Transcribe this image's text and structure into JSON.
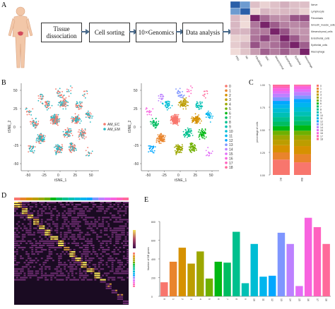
{
  "panels": {
    "A": "A",
    "B": "B",
    "C": "C",
    "D": "D",
    "E": "E"
  },
  "flow": {
    "steps": [
      "Tissue dissociation",
      "Cell sorting",
      "10×Genomics",
      "Data analysis"
    ]
  },
  "heatmap_A": {
    "row_labels": [
      "Nerve",
      "Lymphocyte",
      "Fibroblasts",
      "Smooth_muscle_cells",
      "Mesenchymal_cells",
      "Endothelial_cells",
      "Epithelial_cells",
      "Macrophage"
    ],
    "col_labels": [
      "PRD",
      "NK",
      "Fibroblasts",
      "SMC",
      "Mesenchymal",
      "Endothelial",
      "Epithelial",
      "Macrophage"
    ]
  },
  "tsne_left": {
    "xlabel": "tSNE_1",
    "ylabel": "tSNE_2",
    "xticks": [
      "-50",
      "-25",
      "0",
      "25",
      "50"
    ],
    "yticks": [
      "50",
      "25",
      "0",
      "-25",
      "-50"
    ],
    "legend": [
      {
        "label": "AM_EC",
        "color": "#f47b6e"
      },
      {
        "label": "AM_EM",
        "color": "#27b8c2"
      }
    ]
  },
  "tsne_right": {
    "xlabel": "tSNE_1",
    "ylabel": "tSNE_2",
    "xticks": [
      "-50",
      "-25",
      "0",
      "25",
      "50"
    ],
    "yticks": [
      "50",
      "25",
      "0",
      "-25",
      "-50"
    ],
    "legend": [
      "0",
      "1",
      "2",
      "3",
      "4",
      "5",
      "6",
      "7",
      "8",
      "9",
      "10",
      "11",
      "12",
      "13",
      "14",
      "15",
      "16",
      "17",
      "18"
    ]
  },
  "chart_data": [
    {
      "type": "bar",
      "panel": "C",
      "categories": [
        "EC",
        "EM"
      ],
      "ylabel": "percentage of cells",
      "yticks": [
        "1.00",
        "0.75",
        "0.50",
        "0.25",
        "0.00"
      ],
      "series_colors": [
        "#f8766d",
        "#e9842c",
        "#d69100",
        "#bc9d00",
        "#9ca700",
        "#6fb000",
        "#00b813",
        "#00bd61",
        "#00c08e",
        "#00c0b4",
        "#00bdd4",
        "#00b5ee",
        "#00a7ff",
        "#7f96ff",
        "#bc81ff",
        "#e26ef7",
        "#f863df",
        "#ff62bf",
        "#ff6a9a"
      ],
      "legend": [
        "0",
        "1",
        "2",
        "3",
        "4",
        "5",
        "6",
        "7",
        "8",
        "9",
        "10",
        "11",
        "12",
        "13",
        "14",
        "15",
        "16",
        "17",
        "18"
      ]
    },
    {
      "type": "bar",
      "panel": "E",
      "ylabel": "Number of DE genes",
      "yticks": [
        "800",
        "600",
        "400",
        "200",
        "0"
      ],
      "ylim": [
        0,
        800
      ],
      "categories": [
        "0",
        "1",
        "2",
        "3",
        "4",
        "5",
        "6",
        "7",
        "8",
        "9",
        "10",
        "11",
        "12",
        "13",
        "14",
        "15",
        "16",
        "17",
        "18"
      ],
      "values": [
        150,
        370,
        520,
        350,
        480,
        190,
        370,
        360,
        690,
        140,
        560,
        210,
        220,
        680,
        560,
        110,
        840,
        740,
        560
      ],
      "colors": [
        "#f8766d",
        "#e9842c",
        "#d69100",
        "#bc9d00",
        "#9ca700",
        "#6fb000",
        "#00b813",
        "#00bd61",
        "#00c08e",
        "#00c0b4",
        "#00bdd4",
        "#00b5ee",
        "#00a7ff",
        "#7f96ff",
        "#bc81ff",
        "#e26ef7",
        "#f863df",
        "#ff62bf",
        "#ff6a9a"
      ]
    }
  ],
  "palette19": [
    "#f8766d",
    "#e9842c",
    "#d69100",
    "#bc9d00",
    "#9ca700",
    "#6fb000",
    "#00b813",
    "#00bd61",
    "#00c08e",
    "#00c0b4",
    "#00bdd4",
    "#00b5ee",
    "#00a7ff",
    "#7f96ff",
    "#bc81ff",
    "#e26ef7",
    "#f863df",
    "#ff62bf",
    "#ff6a9a"
  ]
}
